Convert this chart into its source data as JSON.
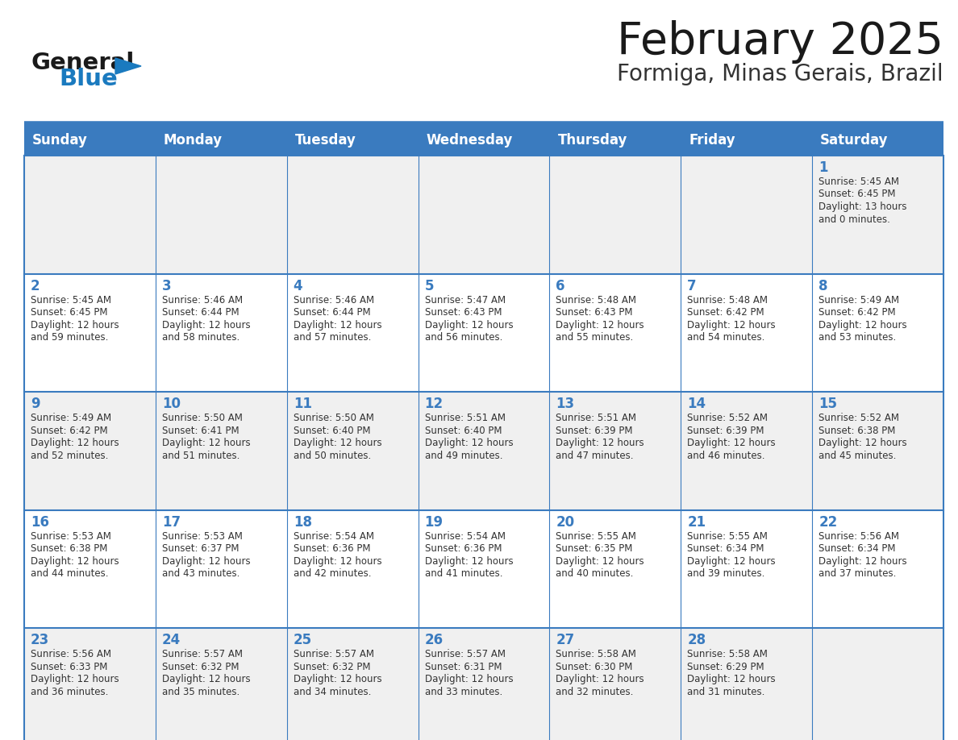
{
  "title": "February 2025",
  "subtitle": "Formiga, Minas Gerais, Brazil",
  "days_of_week": [
    "Sunday",
    "Monday",
    "Tuesday",
    "Wednesday",
    "Thursday",
    "Friday",
    "Saturday"
  ],
  "header_bg": "#3a7bbf",
  "header_text": "#ffffff",
  "cell_bg_even": "#f0f0f0",
  "cell_bg_odd": "#ffffff",
  "cell_border": "#3a7bbf",
  "day_number_color": "#3a7bbf",
  "info_text_color": "#333333",
  "title_color": "#1a1a1a",
  "subtitle_color": "#333333",
  "logo_general_color": "#1a1a1a",
  "logo_blue_color": "#1a7abf",
  "weeks": [
    [
      null,
      null,
      null,
      null,
      null,
      null,
      1
    ],
    [
      2,
      3,
      4,
      5,
      6,
      7,
      8
    ],
    [
      9,
      10,
      11,
      12,
      13,
      14,
      15
    ],
    [
      16,
      17,
      18,
      19,
      20,
      21,
      22
    ],
    [
      23,
      24,
      25,
      26,
      27,
      28,
      null
    ]
  ],
  "sun_data": {
    "1": {
      "rise": "5:45 AM",
      "set": "6:45 PM",
      "hours": 13,
      "minutes": 0
    },
    "2": {
      "rise": "5:45 AM",
      "set": "6:45 PM",
      "hours": 12,
      "minutes": 59
    },
    "3": {
      "rise": "5:46 AM",
      "set": "6:44 PM",
      "hours": 12,
      "minutes": 58
    },
    "4": {
      "rise": "5:46 AM",
      "set": "6:44 PM",
      "hours": 12,
      "minutes": 57
    },
    "5": {
      "rise": "5:47 AM",
      "set": "6:43 PM",
      "hours": 12,
      "minutes": 56
    },
    "6": {
      "rise": "5:48 AM",
      "set": "6:43 PM",
      "hours": 12,
      "minutes": 55
    },
    "7": {
      "rise": "5:48 AM",
      "set": "6:42 PM",
      "hours": 12,
      "minutes": 54
    },
    "8": {
      "rise": "5:49 AM",
      "set": "6:42 PM",
      "hours": 12,
      "minutes": 53
    },
    "9": {
      "rise": "5:49 AM",
      "set": "6:42 PM",
      "hours": 12,
      "minutes": 52
    },
    "10": {
      "rise": "5:50 AM",
      "set": "6:41 PM",
      "hours": 12,
      "minutes": 51
    },
    "11": {
      "rise": "5:50 AM",
      "set": "6:40 PM",
      "hours": 12,
      "minutes": 50
    },
    "12": {
      "rise": "5:51 AM",
      "set": "6:40 PM",
      "hours": 12,
      "minutes": 49
    },
    "13": {
      "rise": "5:51 AM",
      "set": "6:39 PM",
      "hours": 12,
      "minutes": 47
    },
    "14": {
      "rise": "5:52 AM",
      "set": "6:39 PM",
      "hours": 12,
      "minutes": 46
    },
    "15": {
      "rise": "5:52 AM",
      "set": "6:38 PM",
      "hours": 12,
      "minutes": 45
    },
    "16": {
      "rise": "5:53 AM",
      "set": "6:38 PM",
      "hours": 12,
      "minutes": 44
    },
    "17": {
      "rise": "5:53 AM",
      "set": "6:37 PM",
      "hours": 12,
      "minutes": 43
    },
    "18": {
      "rise": "5:54 AM",
      "set": "6:36 PM",
      "hours": 12,
      "minutes": 42
    },
    "19": {
      "rise": "5:54 AM",
      "set": "6:36 PM",
      "hours": 12,
      "minutes": 41
    },
    "20": {
      "rise": "5:55 AM",
      "set": "6:35 PM",
      "hours": 12,
      "minutes": 40
    },
    "21": {
      "rise": "5:55 AM",
      "set": "6:34 PM",
      "hours": 12,
      "minutes": 39
    },
    "22": {
      "rise": "5:56 AM",
      "set": "6:34 PM",
      "hours": 12,
      "minutes": 37
    },
    "23": {
      "rise": "5:56 AM",
      "set": "6:33 PM",
      "hours": 12,
      "minutes": 36
    },
    "24": {
      "rise": "5:57 AM",
      "set": "6:32 PM",
      "hours": 12,
      "minutes": 35
    },
    "25": {
      "rise": "5:57 AM",
      "set": "6:32 PM",
      "hours": 12,
      "minutes": 34
    },
    "26": {
      "rise": "5:57 AM",
      "set": "6:31 PM",
      "hours": 12,
      "minutes": 33
    },
    "27": {
      "rise": "5:58 AM",
      "set": "6:30 PM",
      "hours": 12,
      "minutes": 32
    },
    "28": {
      "rise": "5:58 AM",
      "set": "6:29 PM",
      "hours": 12,
      "minutes": 31
    }
  }
}
